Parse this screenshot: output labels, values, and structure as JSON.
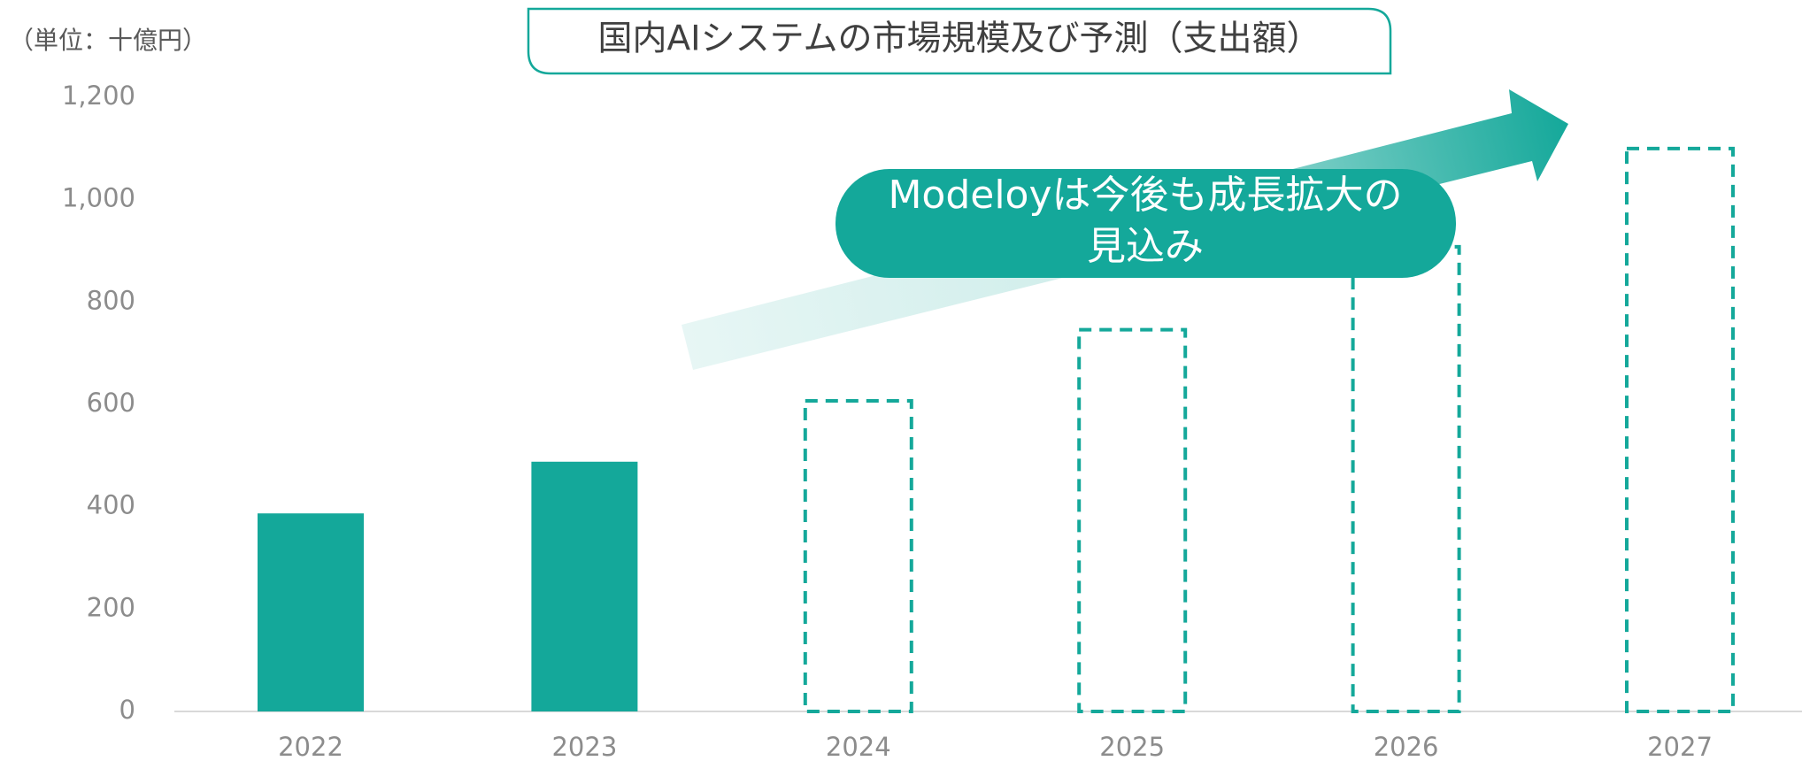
{
  "chart_data": {
    "type": "bar",
    "title": "国内AIシステムの市場規模及び予測（支出額）",
    "unit_label": "（単位：十億円）",
    "annotation": [
      "Modeloyは今後も成長拡大の",
      "見込み"
    ],
    "categories": [
      "2022",
      "2023",
      "2024",
      "2025",
      "2026",
      "2027"
    ],
    "series": [
      {
        "color": "#14a89a",
        "style": "solid",
        "values": [
          387,
          488,
          null,
          null,
          null,
          null
        ]
      },
      {
        "color": "#14a89a",
        "style": "dashed",
        "values": [
          null,
          null,
          607,
          746,
          908,
          1100
        ]
      }
    ],
    "ylim": [
      0,
      1200
    ],
    "yticks": [
      0,
      200,
      400,
      600,
      800,
      {
        "value": 1000,
        "label": "1,000"
      },
      {
        "value": 1200,
        "label": "1,200"
      }
    ],
    "grid": false
  }
}
